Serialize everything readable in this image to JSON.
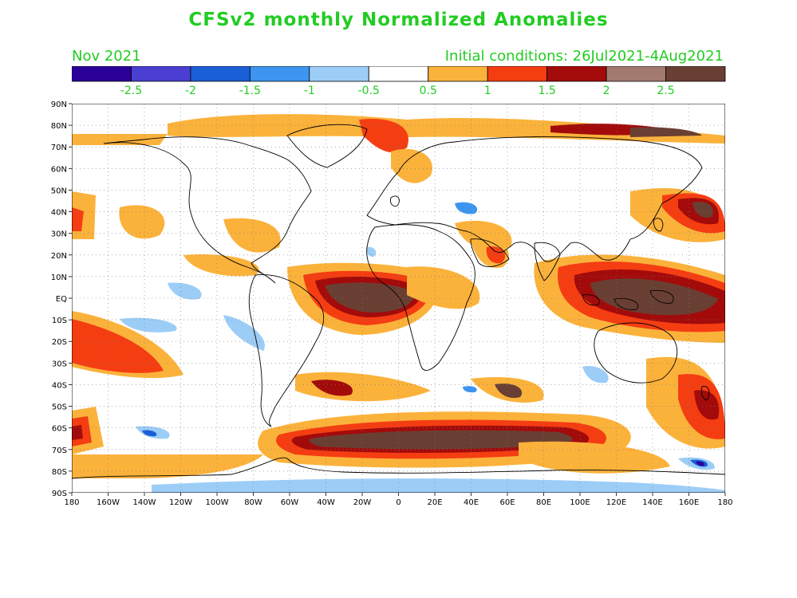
{
  "header": {
    "title": "CFSv2 monthly Normalized Anomalies",
    "month": "Nov 2021",
    "initial_conditions": "Initial conditions: 26Jul2021-4Aug2021"
  },
  "legend": {
    "colors": [
      "#2a0099",
      "#4a3fd0",
      "#1b5fd6",
      "#3d95f0",
      "#9ccdf7",
      "#ffffff",
      "#fbb23b",
      "#f53d12",
      "#a30b0b",
      "#a37a6f",
      "#6a3f33"
    ],
    "labels": [
      "-2.5",
      "-2",
      "-1.5",
      "-1",
      "-0.5",
      "0.5",
      "1",
      "1.5",
      "2",
      "2.5"
    ]
  },
  "map_data": {
    "lat_labels": [
      "90N",
      "80N",
      "70N",
      "60N",
      "50N",
      "40N",
      "30N",
      "20N",
      "10N",
      "EQ",
      "10S",
      "20S",
      "30S",
      "40S",
      "50S",
      "60S",
      "70S",
      "80S",
      "90S"
    ],
    "lon_labels": [
      "180",
      "160W",
      "140W",
      "120W",
      "100W",
      "80W",
      "60W",
      "40W",
      "20W",
      "0",
      "20E",
      "40E",
      "60E",
      "80E",
      "100E",
      "120E",
      "140E",
      "160E",
      "180"
    ],
    "lat_range": [
      -90,
      90
    ],
    "lon_range": [
      -180,
      180
    ],
    "gridlines": true
  }
}
